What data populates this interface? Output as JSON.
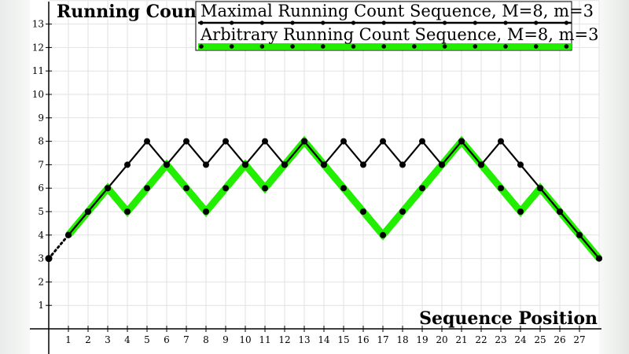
{
  "chart_data": {
    "type": "line",
    "xlabel": "Sequence Position",
    "ylabel": "Running Count",
    "xlim": [
      0,
      28
    ],
    "ylim": [
      0,
      14
    ],
    "x_ticks": [
      1,
      2,
      3,
      4,
      5,
      6,
      7,
      8,
      9,
      10,
      11,
      12,
      13,
      14,
      15,
      16,
      17,
      18,
      19,
      20,
      21,
      22,
      23,
      24,
      25,
      26,
      27
    ],
    "y_ticks": [
      1,
      2,
      3,
      4,
      5,
      6,
      7,
      8,
      9,
      10,
      11,
      12,
      13
    ],
    "grid": true,
    "legend_position": "top-right",
    "start_point": {
      "x": 0,
      "y": 3
    },
    "series": [
      {
        "name": "Maximal Running Count Sequence, M=8, m=3",
        "color": "#000000",
        "x": [
          1,
          2,
          3,
          4,
          5,
          6,
          7,
          8,
          9,
          10,
          11,
          12,
          13,
          14,
          15,
          16,
          17,
          18,
          19,
          20,
          21,
          22,
          23,
          24,
          25,
          26,
          27,
          28
        ],
        "y": [
          4,
          5,
          6,
          7,
          8,
          7,
          8,
          7,
          8,
          7,
          8,
          7,
          8,
          7,
          8,
          7,
          8,
          7,
          8,
          7,
          8,
          7,
          8,
          7,
          6,
          5,
          4,
          3
        ]
      },
      {
        "name": "Arbitrary Running Count Sequence, M=8, m=3",
        "color": "#22ee00",
        "x": [
          1,
          2,
          3,
          4,
          5,
          6,
          7,
          8,
          9,
          10,
          11,
          12,
          13,
          14,
          15,
          16,
          17,
          18,
          19,
          20,
          21,
          22,
          23,
          24,
          25,
          26,
          27,
          28
        ],
        "y": [
          4,
          5,
          6,
          5,
          6,
          7,
          6,
          5,
          6,
          7,
          6,
          7,
          8,
          7,
          6,
          5,
          4,
          5,
          6,
          7,
          8,
          7,
          6,
          5,
          6,
          5,
          4,
          3
        ]
      }
    ]
  }
}
